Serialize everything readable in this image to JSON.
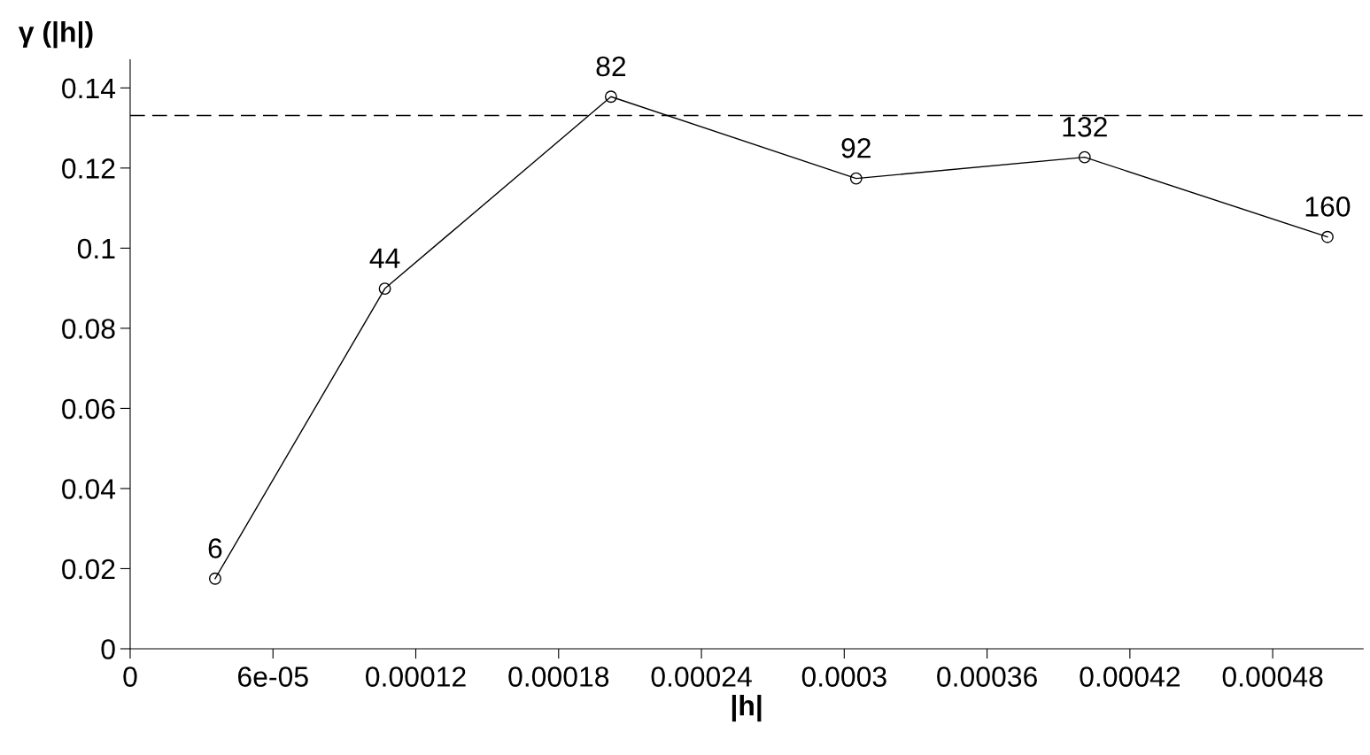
{
  "chart_data": {
    "type": "line",
    "xlabel": "|h|",
    "ylabel": "γ (|h|)",
    "x": [
      3.57e-05,
      0.000107,
      0.000202,
      0.000305,
      0.000401,
      0.000503
    ],
    "series": [
      {
        "color": "#000000",
        "values": [
          0.0175,
          0.0899,
          0.1378,
          0.1174,
          0.1227,
          0.1028
        ]
      }
    ],
    "marker": "circle",
    "line_style": "solid",
    "grid": false,
    "legend": false,
    "xlim": [
      0,
      0.000518
    ],
    "ylim": [
      0,
      0.147
    ],
    "xticks": [
      0,
      {
        "value": 6e-05,
        "label": "6e-05"
      },
      {
        "value": 0.00012,
        "label": "0.00012"
      },
      {
        "value": 0.00018,
        "label": "0.00018"
      },
      {
        "value": 0.00024,
        "label": "0.00024"
      },
      {
        "value": 0.0003,
        "label": "0.0003"
      },
      {
        "value": 0.00036,
        "label": "0.00036"
      },
      {
        "value": 0.00042,
        "label": "0.00042"
      },
      {
        "value": 0.00048,
        "label": "0.00048"
      }
    ],
    "yticks": [
      0,
      0.02,
      0.04,
      0.06,
      0.08,
      {
        "value": 0.1,
        "label": "0.1"
      },
      0.12,
      0.14
    ],
    "ref_lines": [
      {
        "axis": "y",
        "value": 0.1331,
        "line_style": "dashed",
        "color": "#000000"
      }
    ],
    "annotations": [
      {
        "text": "6",
        "x": 3.57e-05,
        "y": 0.0175
      },
      {
        "text": "44",
        "x": 0.000107,
        "y": 0.0899
      },
      {
        "text": "82",
        "x": 0.000202,
        "y": 0.1378
      },
      {
        "text": "92",
        "x": 0.000305,
        "y": 0.1174
      },
      {
        "text": "132",
        "x": 0.000401,
        "y": 0.1227
      },
      {
        "text": "160",
        "x": 0.000503,
        "y": 0.1028
      }
    ]
  }
}
